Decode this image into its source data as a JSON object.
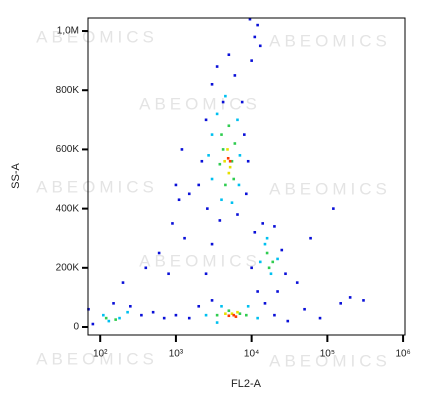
{
  "chart_data": {
    "type": "scatter",
    "watermark": "ABEOMICS",
    "x_label": "FL2-A",
    "y_label": "SS-A",
    "xscale": "log",
    "xlim": [
      69,
      1060000
    ],
    "ylim": [
      -27000,
      1044000
    ],
    "xticks": [
      {
        "value": 100,
        "label": "10²"
      },
      {
        "value": 1000,
        "label": "10³"
      },
      {
        "value": 10000,
        "label": "10⁴"
      },
      {
        "value": 100000,
        "label": "10⁵"
      },
      {
        "value": 1000000,
        "label": "10⁶"
      }
    ],
    "yticks": [
      0,
      {
        "value": 200000,
        "label": "200K"
      },
      {
        "value": 400000,
        "label": "400K"
      },
      {
        "value": 600000,
        "label": "600K"
      },
      {
        "value": 800000,
        "label": "800K"
      },
      {
        "value": 1000000,
        "label": "1,0M"
      }
    ],
    "grid": false,
    "series": [
      {
        "color": "#0a10d8",
        "x": [
          2500,
          3000,
          3500,
          4200,
          6000,
          7500,
          8000,
          2200,
          2000,
          2600,
          3800,
          6500,
          8500,
          9000,
          10000,
          11000,
          12000,
          9500,
          13000,
          5000,
          10000,
          11000,
          14000,
          20000,
          25000,
          28000,
          22000,
          12000,
          1500,
          2000,
          3000,
          15000,
          20000,
          30000,
          50000,
          80000,
          150000,
          200000,
          300000,
          70,
          80,
          150,
          250,
          350,
          500,
          700,
          1000,
          200,
          400,
          600,
          900,
          1100,
          1500,
          1300,
          800,
          3000,
          2500,
          120000,
          60000,
          40000,
          1200,
          1000
        ],
        "values": [
          700000,
          820000,
          880000,
          760000,
          850000,
          760000,
          650000,
          560000,
          480000,
          400000,
          360000,
          380000,
          450000,
          560000,
          900000,
          980000,
          1020000,
          1040000,
          950000,
          920000,
          200000,
          320000,
          350000,
          340000,
          260000,
          180000,
          120000,
          120000,
          30000,
          70000,
          90000,
          80000,
          40000,
          20000,
          60000,
          30000,
          80000,
          100000,
          90000,
          60000,
          10000,
          80000,
          70000,
          40000,
          50000,
          30000,
          40000,
          150000,
          200000,
          250000,
          350000,
          430000,
          450000,
          300000,
          180000,
          280000,
          180000,
          400000,
          300000,
          150000,
          600000,
          480000
        ]
      },
      {
        "color": "#00c0f0",
        "x": [
          3000,
          3500,
          4500,
          6500,
          7000,
          3000,
          4000,
          5500,
          2700,
          6800,
          15000,
          13000,
          18000,
          22000,
          16000,
          2500,
          4000,
          9000,
          12000,
          3500,
          110,
          180,
          230,
          130
        ],
        "values": [
          650000,
          720000,
          780000,
          700000,
          580000,
          500000,
          430000,
          420000,
          580000,
          480000,
          280000,
          220000,
          180000,
          230000,
          300000,
          40000,
          70000,
          70000,
          30000,
          15000,
          40000,
          30000,
          50000,
          20000
        ]
      },
      {
        "color": "#30cc50",
        "x": [
          4000,
          5000,
          6000,
          3800,
          5800,
          4500,
          4200,
          5500,
          16000,
          19000,
          17000,
          5000,
          7000,
          3500,
          8500,
          120,
          160
        ],
        "values": [
          650000,
          680000,
          620000,
          550000,
          500000,
          480000,
          600000,
          560000,
          250000,
          220000,
          200000,
          55000,
          45000,
          40000,
          40000,
          30000,
          25000
        ]
      },
      {
        "color": "#e6e000",
        "x": [
          4800,
          5200,
          5000,
          4400,
          5500,
          6500,
          4500
        ],
        "values": [
          600000,
          540000,
          520000,
          560000,
          45000,
          50000,
          45000
        ]
      },
      {
        "color": "#ff3a00",
        "x": [
          5200,
          4900,
          5800,
          6200,
          5000
        ],
        "values": [
          560000,
          570000,
          40000,
          35000,
          38000
        ]
      }
    ]
  }
}
